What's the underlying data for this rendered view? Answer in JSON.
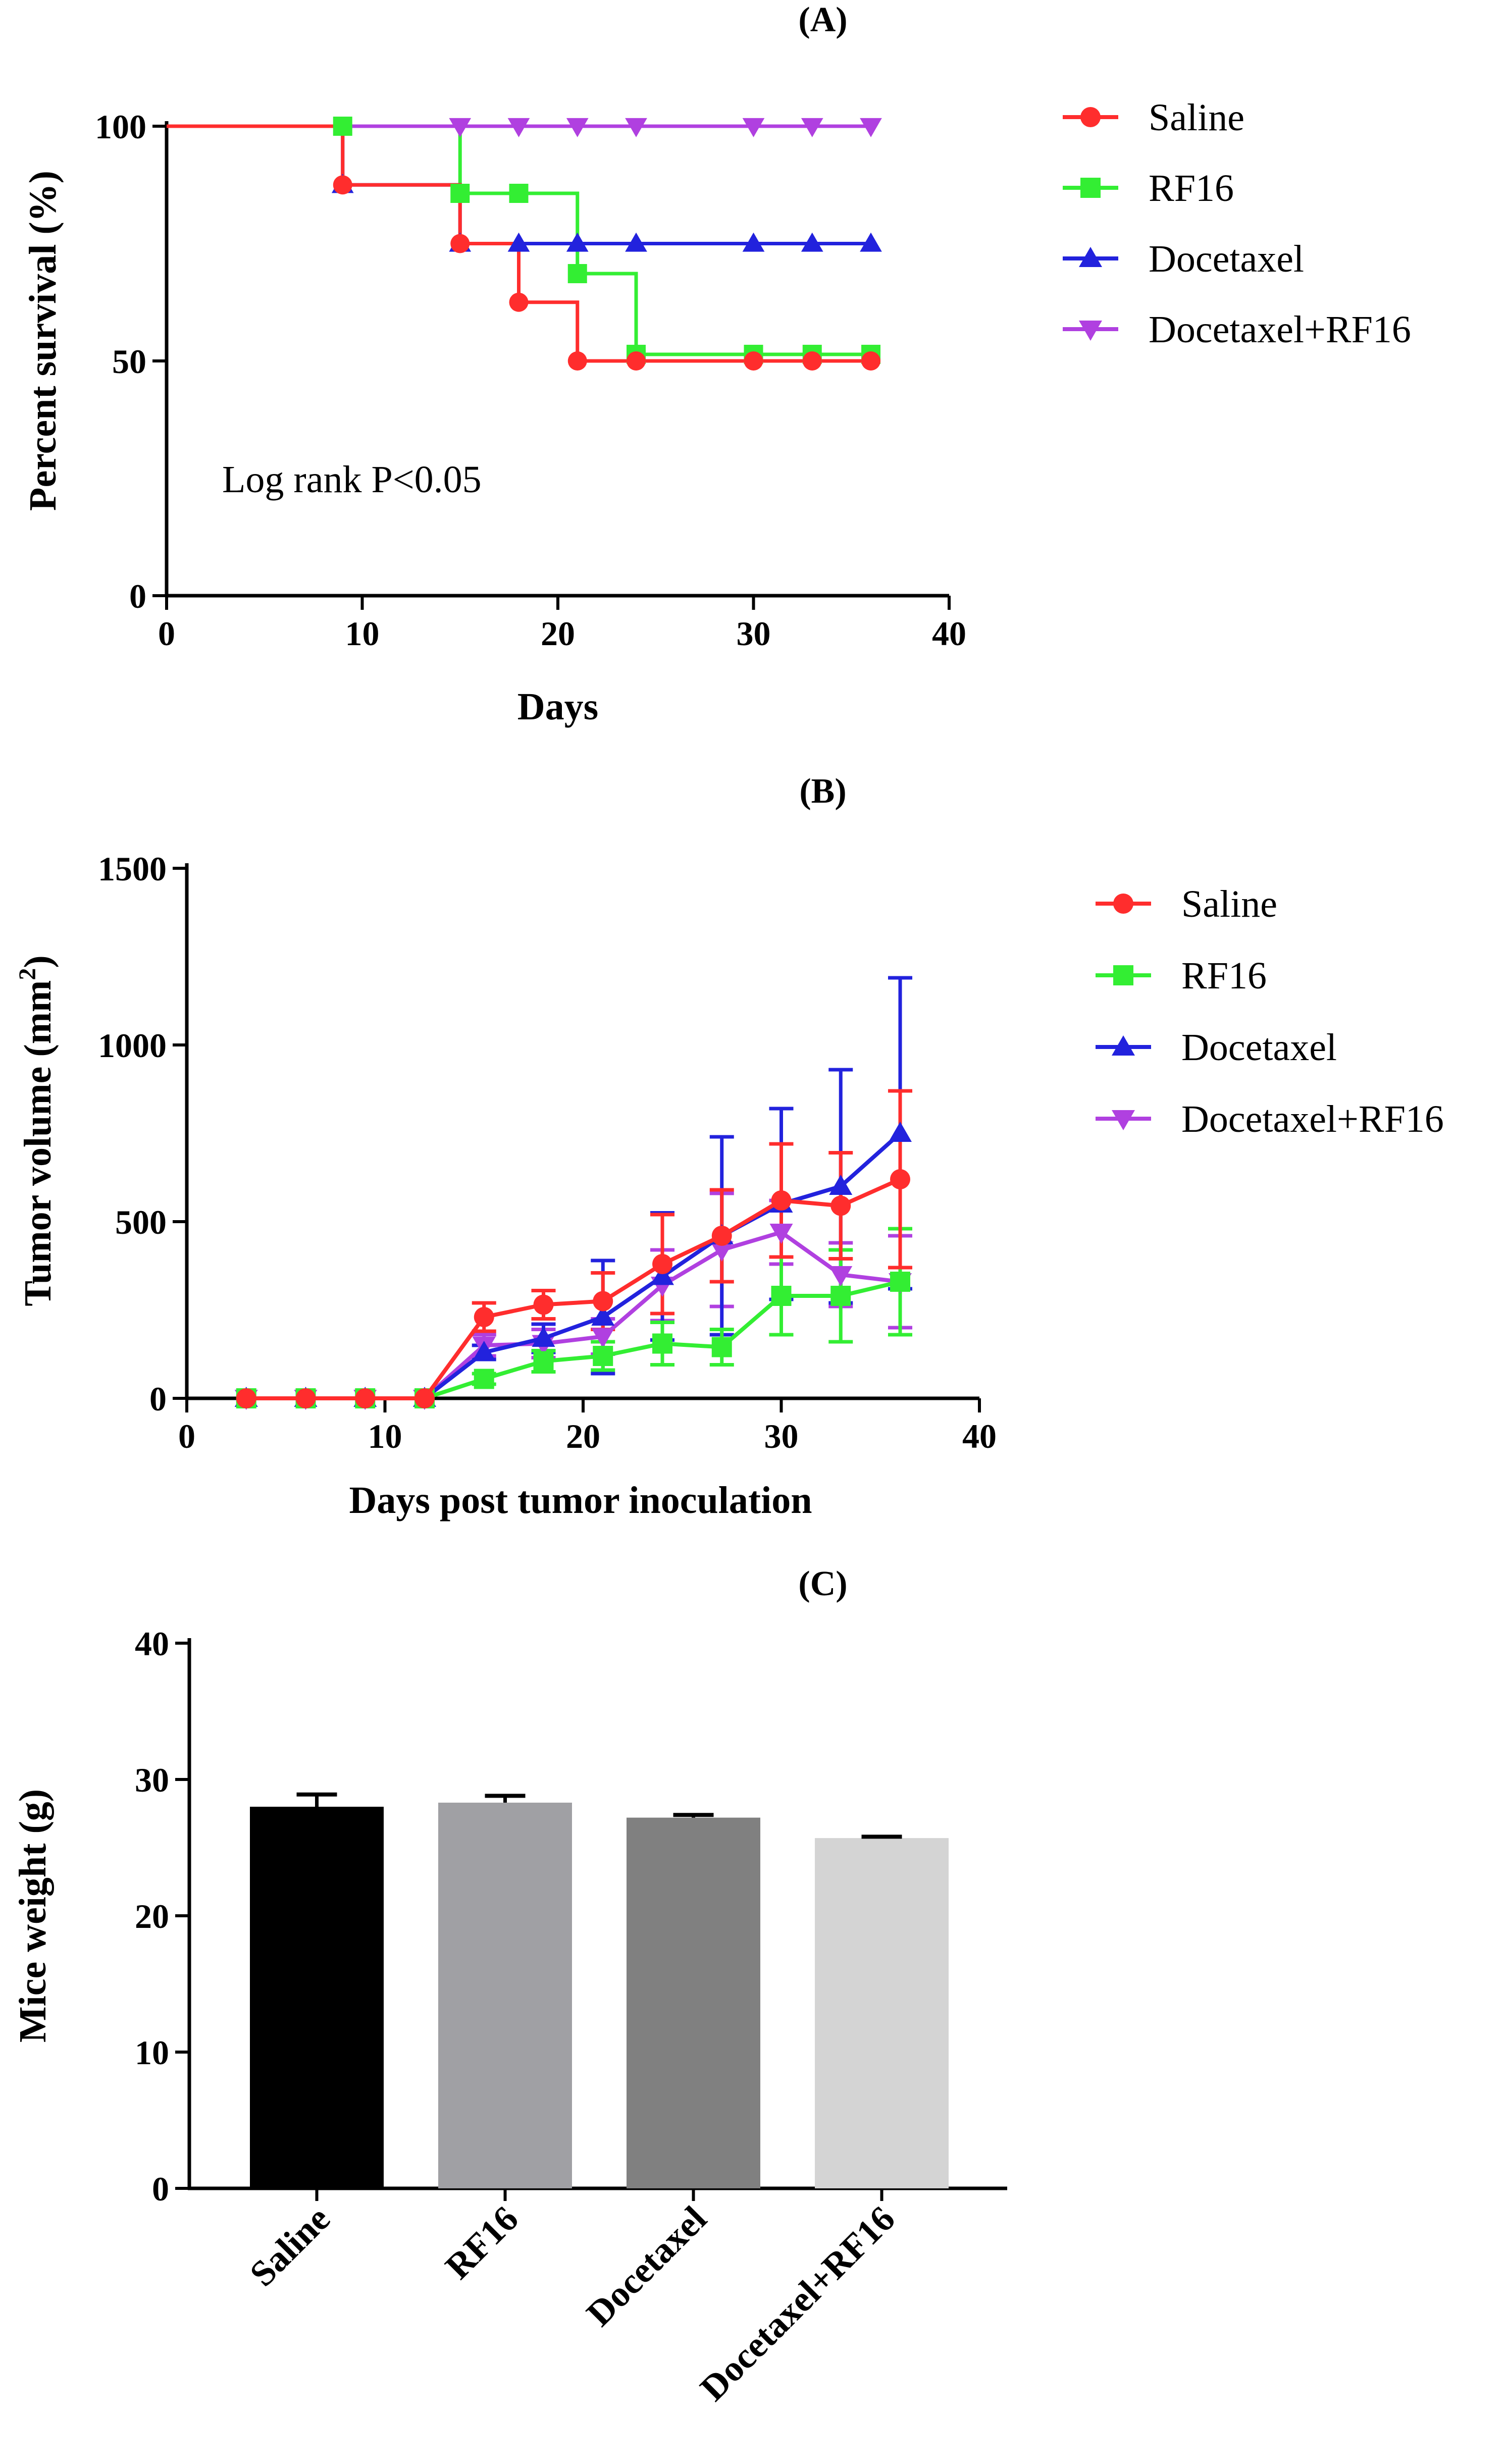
{
  "chart_data": [
    {
      "panel": "(A)",
      "type": "line",
      "step": true,
      "xlabel": "Days",
      "ylabel": "Percent survival (%)",
      "xlim": [
        0,
        40
      ],
      "ylim": [
        0,
        100
      ],
      "xticks": [
        0,
        10,
        20,
        30,
        40
      ],
      "yticks": [
        0,
        50,
        100
      ],
      "annotation": "Log rank P<0.05",
      "legend": "right",
      "series": [
        {
          "name": "Saline",
          "color": "#ff2d2d",
          "marker": "circle",
          "x": [
            0,
            9,
            15,
            18,
            21,
            24,
            30,
            33,
            36
          ],
          "y": [
            100,
            87.5,
            75,
            62.5,
            50,
            50,
            50,
            50,
            50
          ],
          "markers_x": [
            9,
            15,
            18,
            21,
            24,
            30,
            33,
            36
          ]
        },
        {
          "name": "RF16",
          "color": "#33ee33",
          "marker": "square",
          "x": [
            0,
            9,
            15,
            18,
            21,
            24,
            30,
            33,
            36
          ],
          "y": [
            100,
            100,
            85.7,
            85.7,
            68.6,
            51.4,
            51.4,
            51.4,
            51.4
          ],
          "markers_x": [
            9,
            15,
            18,
            21,
            24,
            30,
            33,
            36
          ]
        },
        {
          "name": "Docetaxel",
          "color": "#2222dd",
          "marker": "triangle-up",
          "x": [
            0,
            9,
            15,
            18,
            21,
            24,
            30,
            33,
            36
          ],
          "y": [
            100,
            87.5,
            75,
            75,
            75,
            75,
            75,
            75,
            75
          ],
          "markers_x": [
            9,
            15,
            18,
            21,
            24,
            30,
            33,
            36
          ]
        },
        {
          "name": "Docetaxel+RF16",
          "color": "#b040e0",
          "marker": "triangle-down",
          "x": [
            0,
            9,
            15,
            18,
            21,
            24,
            30,
            33,
            36
          ],
          "y": [
            100,
            100,
            100,
            100,
            100,
            100,
            100,
            100,
            100
          ],
          "markers_x": [
            15,
            18,
            21,
            24,
            30,
            33,
            36
          ]
        }
      ]
    },
    {
      "panel": "(B)",
      "type": "line",
      "xlabel": "Days post tumor inoculation",
      "ylabel": "Tumor volume (mm",
      "ylabel_sup": "2",
      "ylabel_end": ")",
      "xlim": [
        0,
        40
      ],
      "ylim": [
        0,
        1500
      ],
      "xticks": [
        0,
        10,
        20,
        30,
        40
      ],
      "yticks": [
        0,
        500,
        1000,
        1500
      ],
      "legend": "right",
      "x": [
        3,
        6,
        9,
        12,
        15,
        18,
        21,
        24,
        27,
        30,
        33,
        36
      ],
      "series": [
        {
          "name": "Docetaxel+RF16",
          "color": "#b040e0",
          "marker": "triangle-down",
          "y": [
            0,
            0,
            0,
            0,
            150,
            155,
            175,
            320,
            420,
            470,
            350,
            330
          ],
          "err": [
            0,
            0,
            0,
            0,
            30,
            40,
            50,
            100,
            160,
            90,
            90,
            130
          ]
        },
        {
          "name": "Docetaxel",
          "color": "#2222dd",
          "marker": "triangle-up",
          "y": [
            0,
            0,
            0,
            0,
            130,
            170,
            230,
            345,
            460,
            550,
            600,
            750
          ],
          "err": [
            0,
            0,
            0,
            0,
            20,
            40,
            160,
            180,
            280,
            270,
            330,
            440
          ]
        },
        {
          "name": "RF16",
          "color": "#33ee33",
          "marker": "square",
          "y": [
            0,
            0,
            0,
            0,
            55,
            105,
            120,
            155,
            145,
            290,
            290,
            330
          ],
          "err": [
            0,
            0,
            0,
            0,
            15,
            30,
            40,
            60,
            50,
            110,
            130,
            150
          ]
        },
        {
          "name": "Saline",
          "color": "#ff2d2d",
          "marker": "circle",
          "y": [
            0,
            0,
            0,
            0,
            230,
            265,
            275,
            380,
            460,
            560,
            545,
            620
          ],
          "err": [
            0,
            0,
            0,
            0,
            40,
            40,
            80,
            140,
            130,
            160,
            150,
            250
          ]
        }
      ]
    },
    {
      "panel": "(C)",
      "type": "bar",
      "ylabel": "Mice weight (g)",
      "xlabel": "",
      "ylim": [
        0,
        40
      ],
      "yticks": [
        0,
        10,
        20,
        30,
        40
      ],
      "categories": [
        "Saline",
        "RF16",
        "Docetaxel",
        "Docetaxel+RF16"
      ],
      "values": [
        28.0,
        28.3,
        27.2,
        25.7
      ],
      "errors": [
        0.9,
        0.5,
        0.2,
        0.1
      ],
      "colors": [
        "#000000",
        "#a0a0a4",
        "#808080",
        "#d4d4d4"
      ]
    }
  ]
}
